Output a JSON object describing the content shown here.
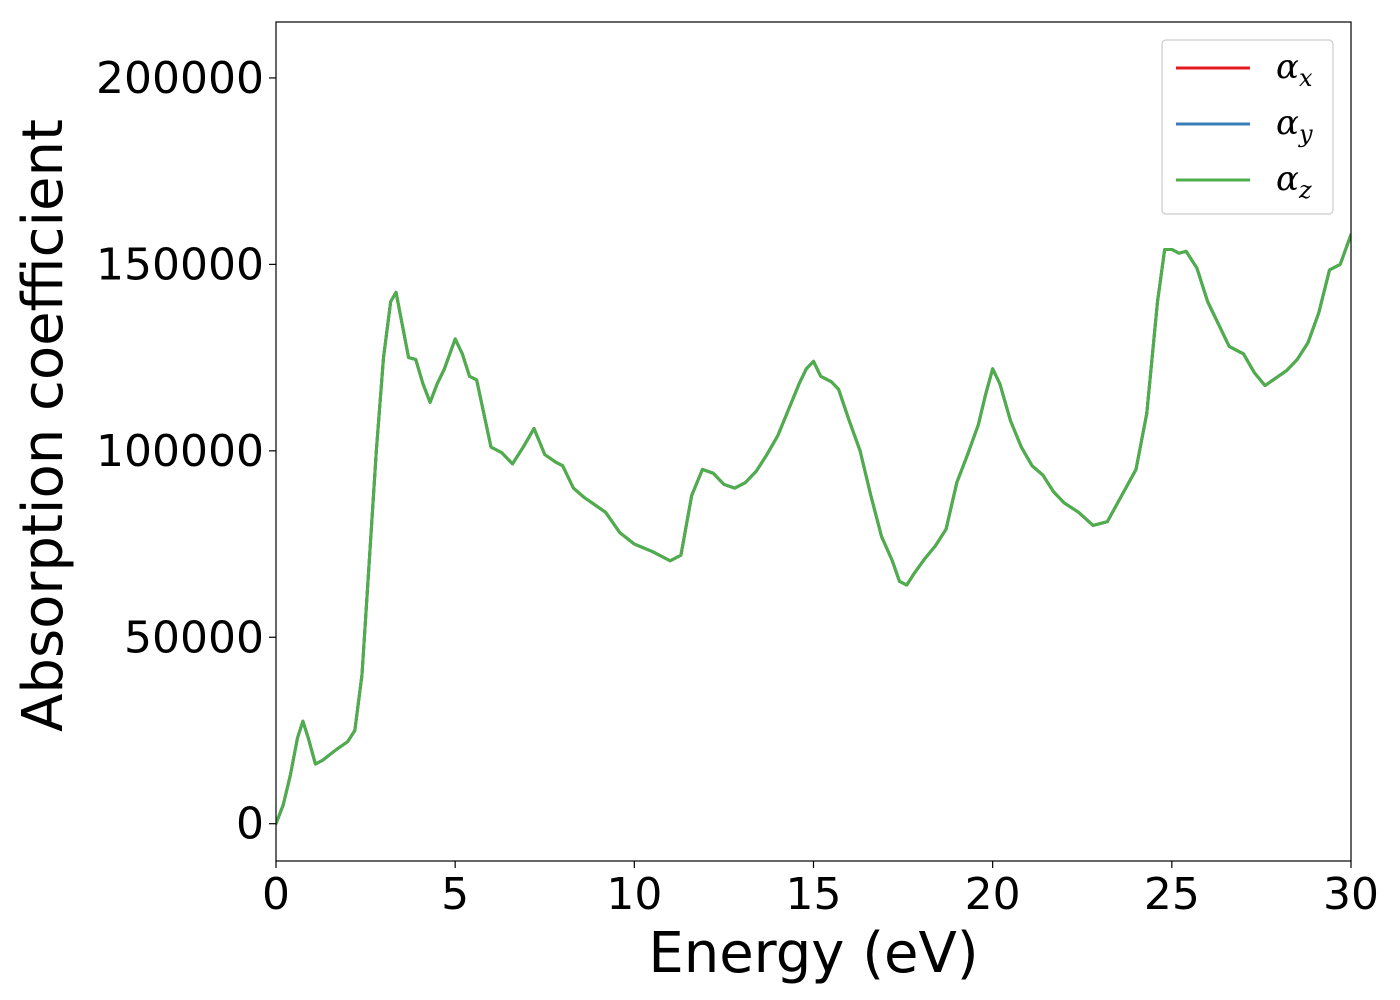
{
  "chart_data": {
    "type": "line",
    "title": "",
    "xlabel": "Energy (eV)",
    "ylabel": "Absorption coefficient",
    "xlim": [
      0,
      30
    ],
    "ylim": [
      -10000,
      215000
    ],
    "xticks": [
      0,
      5,
      10,
      15,
      20,
      25,
      30
    ],
    "yticks": [
      0,
      50000,
      100000,
      150000,
      200000
    ],
    "xtick_labels": [
      "0",
      "5",
      "10",
      "15",
      "20",
      "25",
      "30"
    ],
    "ytick_labels": [
      "0",
      "50000",
      "100000",
      "150000",
      "200000"
    ],
    "grid": false,
    "legend_position": "top-right",
    "series": [
      {
        "name": "αx",
        "color": "#e41a1c",
        "x": [
          0,
          0.2,
          0.4,
          0.6,
          0.75,
          0.9,
          1.1,
          1.3,
          1.5,
          1.7,
          2.0,
          2.2,
          2.4,
          2.6,
          2.8,
          3.0,
          3.2,
          3.35,
          3.5,
          3.7,
          3.9,
          4.1,
          4.3,
          4.5,
          4.7,
          5.0,
          5.2,
          5.4,
          5.6,
          5.8,
          6.0,
          6.3,
          6.6,
          6.9,
          7.2,
          7.5,
          7.8,
          8.0,
          8.3,
          8.6,
          8.9,
          9.2,
          9.6,
          10.0,
          10.5,
          11.0,
          11.3,
          11.6,
          11.9,
          12.2,
          12.5,
          12.8,
          13.1,
          13.4,
          13.7,
          14.0,
          14.3,
          14.6,
          14.8,
          15.0,
          15.2,
          15.5,
          15.7,
          16.0,
          16.3,
          16.6,
          16.9,
          17.2,
          17.4,
          17.6,
          17.8,
          18.1,
          18.4,
          18.7,
          19.0,
          19.3,
          19.6,
          19.8,
          20.0,
          20.2,
          20.5,
          20.8,
          21.1,
          21.4,
          21.7,
          22.0,
          22.4,
          22.8,
          23.2,
          23.6,
          24.0,
          24.3,
          24.6,
          24.8,
          25.0,
          25.2,
          25.4,
          25.7,
          26.0,
          26.3,
          26.6,
          27.0,
          27.3,
          27.6,
          27.9,
          28.2,
          28.5,
          28.8,
          29.1,
          29.4,
          29.7,
          30.0
        ],
        "values": [
          0,
          5000,
          13000,
          23000,
          27500,
          23000,
          16000,
          17000,
          18500,
          20000,
          22000,
          25000,
          40000,
          70000,
          100000,
          125000,
          140000,
          142500,
          135000,
          125000,
          124500,
          118000,
          113000,
          118000,
          122000,
          130000,
          126000,
          120000,
          119000,
          110000,
          101000,
          99500,
          96500,
          101000,
          106000,
          99000,
          97000,
          96000,
          90000,
          87500,
          85500,
          83500,
          78000,
          75000,
          73000,
          70500,
          72000,
          88000,
          95000,
          94000,
          91000,
          90000,
          91500,
          94500,
          99000,
          104000,
          111000,
          118000,
          122000,
          124000,
          120000,
          118500,
          116500,
          108000,
          100000,
          88000,
          77000,
          70500,
          65000,
          64000,
          67000,
          71000,
          74500,
          79000,
          91500,
          99000,
          107000,
          115000,
          122000,
          118000,
          108000,
          101000,
          96000,
          93500,
          89000,
          86000,
          83500,
          80000,
          81000,
          88000,
          95000,
          110000,
          140000,
          154000,
          154000,
          153000,
          153500,
          149000,
          140000,
          134000,
          128000,
          126000,
          121000,
          117500,
          119500,
          121500,
          124500,
          129000,
          137000,
          148500,
          150000,
          158000
        ]
      },
      {
        "name": "αy",
        "color": "#377eb8",
        "x": [
          0,
          0.2,
          0.4,
          0.6,
          0.75,
          0.9,
          1.1,
          1.3,
          1.5,
          1.7,
          2.0,
          2.2,
          2.4,
          2.6,
          2.8,
          3.0,
          3.2,
          3.35,
          3.5,
          3.7,
          3.9,
          4.1,
          4.3,
          4.5,
          4.7,
          5.0,
          5.2,
          5.4,
          5.6,
          5.8,
          6.0,
          6.3,
          6.6,
          6.9,
          7.2,
          7.5,
          7.8,
          8.0,
          8.3,
          8.6,
          8.9,
          9.2,
          9.6,
          10.0,
          10.5,
          11.0,
          11.3,
          11.6,
          11.9,
          12.2,
          12.5,
          12.8,
          13.1,
          13.4,
          13.7,
          14.0,
          14.3,
          14.6,
          14.8,
          15.0,
          15.2,
          15.5,
          15.7,
          16.0,
          16.3,
          16.6,
          16.9,
          17.2,
          17.4,
          17.6,
          17.8,
          18.1,
          18.4,
          18.7,
          19.0,
          19.3,
          19.6,
          19.8,
          20.0,
          20.2,
          20.5,
          20.8,
          21.1,
          21.4,
          21.7,
          22.0,
          22.4,
          22.8,
          23.2,
          23.6,
          24.0,
          24.3,
          24.6,
          24.8,
          25.0,
          25.2,
          25.4,
          25.7,
          26.0,
          26.3,
          26.6,
          27.0,
          27.3,
          27.6,
          27.9,
          28.2,
          28.5,
          28.8,
          29.1,
          29.4,
          29.7,
          30.0
        ],
        "values": [
          0,
          5000,
          13000,
          23000,
          27500,
          23000,
          16000,
          17000,
          18500,
          20000,
          22000,
          25000,
          40000,
          70000,
          100000,
          125000,
          140000,
          142500,
          135000,
          125000,
          124500,
          118000,
          113000,
          118000,
          122000,
          130000,
          126000,
          120000,
          119000,
          110000,
          101000,
          99500,
          96500,
          101000,
          106000,
          99000,
          97000,
          96000,
          90000,
          87500,
          85500,
          83500,
          78000,
          75000,
          73000,
          70500,
          72000,
          88000,
          95000,
          94000,
          91000,
          90000,
          91500,
          94500,
          99000,
          104000,
          111000,
          118000,
          122000,
          124000,
          120000,
          118500,
          116500,
          108000,
          100000,
          88000,
          77000,
          70500,
          65000,
          64000,
          67000,
          71000,
          74500,
          79000,
          91500,
          99000,
          107000,
          115000,
          122000,
          118000,
          108000,
          101000,
          96000,
          93500,
          89000,
          86000,
          83500,
          80000,
          81000,
          88000,
          95000,
          110000,
          140000,
          154000,
          154000,
          153000,
          153500,
          149000,
          140000,
          134000,
          128000,
          126000,
          121000,
          117500,
          119500,
          121500,
          124500,
          129000,
          137000,
          148500,
          150000,
          158000
        ]
      },
      {
        "name": "αz",
        "color": "#4daf4a",
        "x": [
          0,
          0.2,
          0.4,
          0.6,
          0.75,
          0.9,
          1.1,
          1.3,
          1.5,
          1.7,
          2.0,
          2.2,
          2.4,
          2.6,
          2.8,
          3.0,
          3.2,
          3.35,
          3.5,
          3.7,
          3.9,
          4.1,
          4.3,
          4.5,
          4.7,
          5.0,
          5.2,
          5.4,
          5.6,
          5.8,
          6.0,
          6.3,
          6.6,
          6.9,
          7.2,
          7.5,
          7.8,
          8.0,
          8.3,
          8.6,
          8.9,
          9.2,
          9.6,
          10.0,
          10.5,
          11.0,
          11.3,
          11.6,
          11.9,
          12.2,
          12.5,
          12.8,
          13.1,
          13.4,
          13.7,
          14.0,
          14.3,
          14.6,
          14.8,
          15.0,
          15.2,
          15.5,
          15.7,
          16.0,
          16.3,
          16.6,
          16.9,
          17.2,
          17.4,
          17.6,
          17.8,
          18.1,
          18.4,
          18.7,
          19.0,
          19.3,
          19.6,
          19.8,
          20.0,
          20.2,
          20.5,
          20.8,
          21.1,
          21.4,
          21.7,
          22.0,
          22.4,
          22.8,
          23.2,
          23.6,
          24.0,
          24.3,
          24.6,
          24.8,
          25.0,
          25.2,
          25.4,
          25.7,
          26.0,
          26.3,
          26.6,
          27.0,
          27.3,
          27.6,
          27.9,
          28.2,
          28.5,
          28.8,
          29.1,
          29.4,
          29.7,
          30.0
        ],
        "values": [
          0,
          5000,
          13000,
          23000,
          27500,
          23000,
          16000,
          17000,
          18500,
          20000,
          22000,
          25000,
          40000,
          70000,
          100000,
          125000,
          140000,
          142500,
          135000,
          125000,
          124500,
          118000,
          113000,
          118000,
          122000,
          130000,
          126000,
          120000,
          119000,
          110000,
          101000,
          99500,
          96500,
          101000,
          106000,
          99000,
          97000,
          96000,
          90000,
          87500,
          85500,
          83500,
          78000,
          75000,
          73000,
          70500,
          72000,
          88000,
          95000,
          94000,
          91000,
          90000,
          91500,
          94500,
          99000,
          104000,
          111000,
          118000,
          122000,
          124000,
          120000,
          118500,
          116500,
          108000,
          100000,
          88000,
          77000,
          70500,
          65000,
          64000,
          67000,
          71000,
          74500,
          79000,
          91500,
          99000,
          107000,
          115000,
          122000,
          118000,
          108000,
          101000,
          96000,
          93500,
          89000,
          86000,
          83500,
          80000,
          81000,
          88000,
          95000,
          110000,
          140000,
          154000,
          154000,
          153000,
          153500,
          149000,
          140000,
          134000,
          128000,
          126000,
          121000,
          117500,
          119500,
          121500,
          124500,
          129000,
          137000,
          148500,
          150000,
          158000
        ]
      }
    ]
  }
}
